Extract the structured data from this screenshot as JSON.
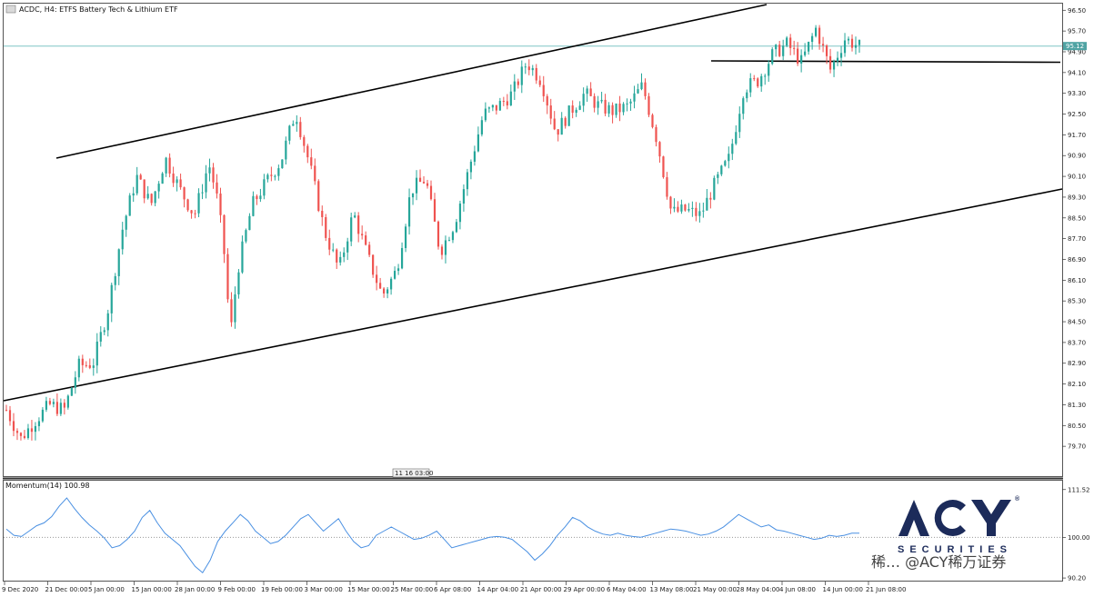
{
  "header": {
    "symbol_line": "ACDC, H4:  ETFS Battery Tech & Lithium ETF"
  },
  "colors": {
    "bull": "#26a69a",
    "bear": "#ef5350",
    "trendline": "#000000",
    "price_line": "#7fc6c6",
    "momentum": "#4a90e2",
    "logo_navy": "#1c2b5a"
  },
  "chart_data": [
    {
      "type": "candlestick",
      "title": "ACDC, H4:  ETFS Battery Tech & Lithium ETF",
      "ylim": [
        78.9,
        96.65
      ],
      "y_ticks": [
        "96.50",
        "95.70",
        "94.90",
        "94.10",
        "93.30",
        "92.50",
        "91.70",
        "90.90",
        "90.10",
        "89.30",
        "88.50",
        "87.70",
        "86.90",
        "86.10",
        "85.30",
        "84.50",
        "83.70",
        "82.90",
        "82.10",
        "81.30",
        "80.50",
        "79.70"
      ],
      "current_price": "95.12",
      "x_ticks": [
        "9 Dec 2020",
        "21 Dec 00:00",
        "5 Jan 00:00",
        "15 Jan 00:00",
        "28 Jan 00:00",
        "9 Feb 00:00",
        "19 Feb 00:00",
        "3 Mar 00:00",
        "15 Mar 00:00",
        "25 Mar 00:00",
        "6 Apr 08:00",
        "14 Apr 04:00",
        "21 Apr 00:00",
        "29 Apr 00:00",
        "6 May 04:00",
        "13 May 08:00",
        "21 May 00:00",
        "28 May 04:00",
        "4 Jun 08:00",
        "14 Jun 00:00",
        "21 Jun 08:00"
      ],
      "time_marker": "11 16 03:00",
      "close_path": [
        {
          "t": 0,
          "c": 81.1
        },
        {
          "t": 2,
          "c": 80.0
        },
        {
          "t": 4,
          "c": 80.7
        },
        {
          "t": 6,
          "c": 81.3
        },
        {
          "t": 8,
          "c": 81.1
        },
        {
          "t": 10,
          "c": 82.8
        },
        {
          "t": 12,
          "c": 82.9
        },
        {
          "t": 14,
          "c": 84.9
        },
        {
          "t": 16,
          "c": 88.0
        },
        {
          "t": 18,
          "c": 90.1
        },
        {
          "t": 20,
          "c": 89.0
        },
        {
          "t": 22,
          "c": 90.8
        },
        {
          "t": 24,
          "c": 89.6
        },
        {
          "t": 26,
          "c": 88.6
        },
        {
          "t": 28,
          "c": 90.6
        },
        {
          "t": 29,
          "c": 89.5
        },
        {
          "t": 30,
          "c": 87.6
        },
        {
          "t": 31,
          "c": 84.0
        },
        {
          "t": 32,
          "c": 86.5
        },
        {
          "t": 34,
          "c": 89.0
        },
        {
          "t": 36,
          "c": 89.9
        },
        {
          "t": 38,
          "c": 90.7
        },
        {
          "t": 40,
          "c": 92.6
        },
        {
          "t": 42,
          "c": 90.5
        },
        {
          "t": 44,
          "c": 88.0
        },
        {
          "t": 46,
          "c": 86.5
        },
        {
          "t": 48,
          "c": 88.7
        },
        {
          "t": 50,
          "c": 87.0
        },
        {
          "t": 52,
          "c": 85.5
        },
        {
          "t": 54,
          "c": 86.5
        },
        {
          "t": 56,
          "c": 89.6
        },
        {
          "t": 58,
          "c": 90.0
        },
        {
          "t": 60,
          "c": 87.2
        },
        {
          "t": 62,
          "c": 88.3
        },
        {
          "t": 64,
          "c": 90.4
        },
        {
          "t": 66,
          "c": 92.5
        },
        {
          "t": 68,
          "c": 92.8
        },
        {
          "t": 70,
          "c": 93.3
        },
        {
          "t": 72,
          "c": 94.5
        },
        {
          "t": 74,
          "c": 93.8
        },
        {
          "t": 76,
          "c": 91.8
        },
        {
          "t": 78,
          "c": 92.6
        },
        {
          "t": 80,
          "c": 93.3
        },
        {
          "t": 82,
          "c": 92.8
        },
        {
          "t": 84,
          "c": 92.6
        },
        {
          "t": 86,
          "c": 92.8
        },
        {
          "t": 88,
          "c": 93.6
        },
        {
          "t": 90,
          "c": 91.5
        },
        {
          "t": 92,
          "c": 88.7
        },
        {
          "t": 94,
          "c": 88.8
        },
        {
          "t": 96,
          "c": 88.6
        },
        {
          "t": 98,
          "c": 89.8
        },
        {
          "t": 100,
          "c": 90.8
        },
        {
          "t": 102,
          "c": 93.5
        },
        {
          "t": 104,
          "c": 93.8
        },
        {
          "t": 106,
          "c": 94.8
        },
        {
          "t": 108,
          "c": 95.2
        },
        {
          "t": 110,
          "c": 94.5
        },
        {
          "t": 112,
          "c": 95.8
        },
        {
          "t": 114,
          "c": 94.2
        },
        {
          "t": 116,
          "c": 95.4
        },
        {
          "t": 118,
          "c": 95.1
        }
      ],
      "momentum": {
        "label": "Momentum(14) 100.98",
        "ylim": [
          90.0,
          113.0
        ],
        "y_ticks": [
          "111.52",
          "100.00",
          "90.20"
        ],
        "baseline": 100,
        "values": [
          102,
          100.5,
          100.2,
          101.5,
          102.8,
          103.5,
          105,
          107.5,
          109.5,
          107,
          104.8,
          103,
          101.5,
          99.8,
          97.5,
          98,
          99.5,
          101.5,
          104.8,
          106.5,
          103.5,
          101,
          99.5,
          98,
          95.5,
          93,
          91.5,
          94.5,
          99,
          101.5,
          103.5,
          105.5,
          104,
          101.5,
          100,
          98.5,
          99,
          100.5,
          102.5,
          104.5,
          105.5,
          103.5,
          101.5,
          103,
          104.5,
          101.5,
          99,
          97.5,
          98,
          100.5,
          101.5,
          102.5,
          101.5,
          100.5,
          99.5,
          99.8,
          100.5,
          101.5,
          99.5,
          97.5,
          98,
          98.5,
          99,
          99.5,
          100,
          100.2,
          100,
          99.5,
          98,
          96.5,
          94.5,
          96,
          98,
          100.5,
          102.5,
          104.8,
          104,
          102.5,
          101.5,
          100.8,
          100.5,
          101,
          100.5,
          100.2,
          100,
          100.5,
          101,
          101.5,
          102,
          101.8,
          101.5,
          101,
          100.5,
          100.8,
          101.5,
          102.5,
          104,
          105.5,
          104.5,
          103.5,
          102.5,
          103,
          101.8,
          101.5,
          101,
          100.5,
          100,
          99.5,
          99.8,
          100.5,
          100.2,
          100.5,
          101,
          101
        ]
      }
    }
  ],
  "logo": {
    "brand": "ACY",
    "securities": "SECURITIES",
    "registered": "®",
    "watermark": "稀万证券",
    "overlay": "稀…  @ACY稀万证券"
  }
}
